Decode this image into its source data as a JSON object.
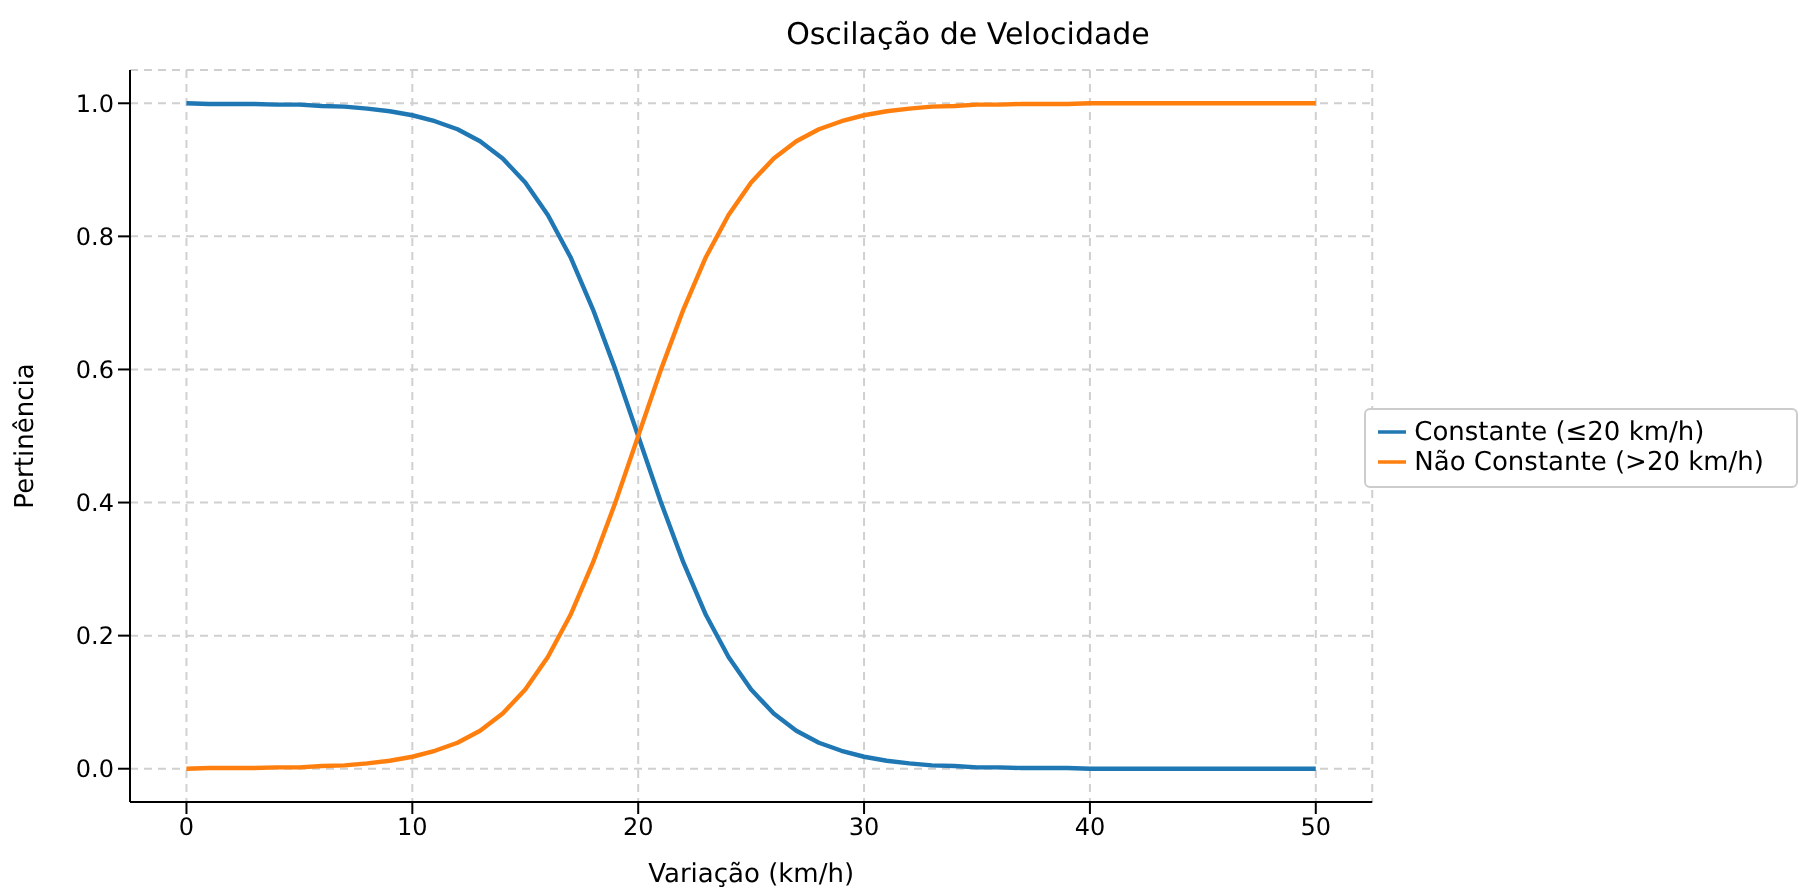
{
  "chart_data": {
    "type": "line",
    "title": "Oscilação de Velocidade",
    "xlabel": "Variação (km/h)",
    "ylabel": "Pertinência",
    "x": [
      0,
      1,
      2,
      3,
      4,
      5,
      6,
      7,
      8,
      9,
      10,
      11,
      12,
      13,
      14,
      15,
      16,
      17,
      18,
      19,
      20,
      21,
      22,
      23,
      24,
      25,
      26,
      27,
      28,
      29,
      30,
      31,
      32,
      33,
      34,
      35,
      36,
      37,
      38,
      39,
      40,
      41,
      42,
      43,
      44,
      45,
      46,
      47,
      48,
      49,
      50
    ],
    "series": [
      {
        "name": "Constante (≤20 km/h)",
        "color": "#1f77b4",
        "values": [
          1,
          0.999,
          0.999,
          0.999,
          0.998,
          0.998,
          0.996,
          0.995,
          0.992,
          0.988,
          0.982,
          0.973,
          0.961,
          0.943,
          0.917,
          0.881,
          0.832,
          0.769,
          0.69,
          0.599,
          0.5,
          0.401,
          0.31,
          0.231,
          0.168,
          0.119,
          0.083,
          0.057,
          0.039,
          0.027,
          0.018,
          0.012,
          0.008,
          0.005,
          0.004,
          0.002,
          0.002,
          0.001,
          0.001,
          0.001,
          0,
          0,
          0,
          0,
          0,
          0,
          0,
          0,
          0,
          0,
          0
        ]
      },
      {
        "name": "Não Constante (>20 km/h)",
        "color": "#ff7f0e",
        "values": [
          0,
          0.001,
          0.001,
          0.001,
          0.002,
          0.002,
          0.004,
          0.005,
          0.008,
          0.012,
          0.018,
          0.027,
          0.039,
          0.057,
          0.083,
          0.119,
          0.168,
          0.231,
          0.31,
          0.401,
          0.5,
          0.599,
          0.69,
          0.769,
          0.832,
          0.881,
          0.917,
          0.943,
          0.961,
          0.973,
          0.982,
          0.988,
          0.992,
          0.995,
          0.996,
          0.998,
          0.998,
          0.999,
          0.999,
          0.999,
          1,
          1,
          1,
          1,
          1,
          1,
          1,
          1,
          1,
          1,
          1
        ]
      }
    ],
    "xlim": [
      -2.5,
      52.5
    ],
    "xticks": [
      0,
      10,
      20,
      30,
      40,
      50
    ],
    "ylim": [
      -0.05,
      1.05
    ],
    "yticks": [
      {
        "value": 0,
        "label": "0.0"
      },
      {
        "value": 0.2,
        "label": "0.2"
      },
      {
        "value": 0.4,
        "label": "0.4"
      },
      {
        "value": 0.6,
        "label": "0.6"
      },
      {
        "value": 0.8,
        "label": "0.8"
      },
      {
        "value": 1,
        "label": "1.0"
      }
    ],
    "grid": true,
    "legend": "right",
    "marker": "none",
    "line_style": "solid"
  }
}
